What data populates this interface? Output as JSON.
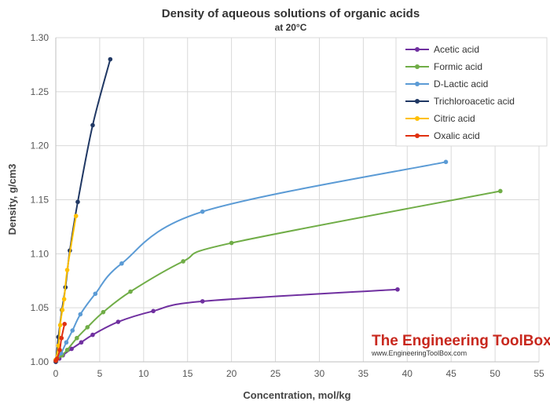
{
  "chart_data": {
    "type": "line",
    "title": "Density of aqueous solutions of organic acids",
    "subtitle": "at 20°C",
    "xlabel": "Concentration, mol/kg",
    "ylabel": "Density, g/cm3",
    "xlim": [
      0,
      55
    ],
    "ylim": [
      1.0,
      1.3
    ],
    "x_ticks": [
      "0",
      "5",
      "10",
      "15",
      "20",
      "25",
      "30",
      "35",
      "40",
      "45",
      "50",
      "55"
    ],
    "y_ticks": [
      "1.00",
      "1.05",
      "1.10",
      "1.15",
      "1.20",
      "1.25",
      "1.30"
    ],
    "grid": "both",
    "legend_position": "top-right",
    "series": [
      {
        "name": "Acetic acid",
        "color": "#7030a0",
        "points": [
          [
            0,
            1.0
          ],
          [
            0.4,
            1.003
          ],
          [
            0.8,
            1.006
          ],
          [
            1.8,
            1.012
          ],
          [
            2.9,
            1.018
          ],
          [
            4.2,
            1.025
          ],
          [
            7.1,
            1.037
          ],
          [
            11.1,
            1.047
          ],
          [
            16.7,
            1.056
          ],
          [
            38.9,
            1.067
          ]
        ]
      },
      {
        "name": "Formic acid",
        "color": "#70ad47",
        "points": [
          [
            0,
            1.001
          ],
          [
            0.7,
            1.006
          ],
          [
            1.3,
            1.011
          ],
          [
            2.4,
            1.022
          ],
          [
            3.6,
            1.032
          ],
          [
            5.4,
            1.046
          ],
          [
            8.5,
            1.065
          ],
          [
            14.5,
            1.093
          ],
          [
            20.0,
            1.11
          ],
          [
            50.6,
            1.158
          ]
        ]
      },
      {
        "name": "D-Lactic acid",
        "color": "#5b9bd5",
        "points": [
          [
            0,
            1.002
          ],
          [
            0.6,
            1.008
          ],
          [
            1.2,
            1.018
          ],
          [
            1.9,
            1.029
          ],
          [
            2.8,
            1.044
          ],
          [
            4.5,
            1.063
          ],
          [
            7.5,
            1.091
          ],
          [
            16.7,
            1.139
          ],
          [
            44.4,
            1.185
          ]
        ]
      },
      {
        "name": "Trichloroacetic acid",
        "color": "#203864",
        "points": [
          [
            0,
            1.0
          ],
          [
            0.3,
            1.023
          ],
          [
            0.7,
            1.048
          ],
          [
            1.1,
            1.069
          ],
          [
            1.6,
            1.103
          ],
          [
            2.5,
            1.148
          ],
          [
            4.2,
            1.219
          ],
          [
            6.2,
            1.28
          ]
        ]
      },
      {
        "name": "Citric acid",
        "color": "#ffc000",
        "points": [
          [
            0,
            1.002
          ],
          [
            0.3,
            1.015
          ],
          [
            0.5,
            1.034
          ],
          [
            0.75,
            1.048
          ],
          [
            0.95,
            1.058
          ],
          [
            1.3,
            1.085
          ],
          [
            2.3,
            1.135
          ]
        ]
      },
      {
        "name": "Oxalic acid",
        "color": "#e03010",
        "points": [
          [
            0,
            1.001
          ],
          [
            0.15,
            1.003
          ],
          [
            0.45,
            1.011
          ],
          [
            0.65,
            1.022
          ],
          [
            1.0,
            1.035
          ]
        ]
      }
    ]
  },
  "watermark": {
    "main": "The Engineering ToolBox",
    "sub": "www.EngineeringToolBox.com"
  }
}
